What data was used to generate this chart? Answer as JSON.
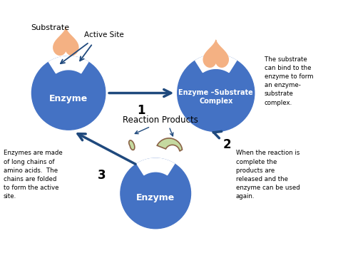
{
  "bg_color": "#ffffff",
  "enzyme_color": "#4472c4",
  "substrate_color": "#f4b183",
  "product_color": "#c5d9a0",
  "product_outline": "#8b6347",
  "arrow_color": "#1f497d",
  "text_color": "#000000",
  "enzyme_text_color": "#ffffff",
  "labels": {
    "substrate": "Substrate",
    "enzyme1": "Enzyme",
    "enzyme2": "Enzyme –Substrate\nComplex",
    "enzyme3": "Enzyme",
    "active_site": "Active Site",
    "step1": "1",
    "step2": "2",
    "step3": "3",
    "reaction_products": "Reaction Products",
    "note1": "The substrate\ncan bind to the\nenzyme to form\nan enzyme-\nsubstrate\ncomplex.",
    "note2": "Enzymes are made\nof long chains of\namino acids.  The\nchains are folded\nto form the active\nsite.",
    "note3": "When the reaction is\ncomplete the\nproducts are\nreleased and the\nenzyme can be used\nagain."
  }
}
